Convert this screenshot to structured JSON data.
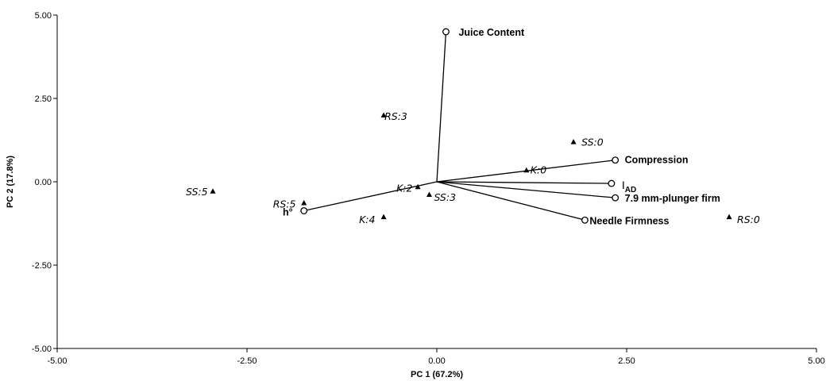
{
  "chart_data": {
    "type": "scatter",
    "subtype": "biplot",
    "xlabel": "PC 1 (67.2%)",
    "ylabel": "PC 2 (17.8%)",
    "xlim": [
      -5.0,
      5.0
    ],
    "ylim": [
      -5.0,
      5.0
    ],
    "x_ticks": [
      "-5.00",
      "-2.50",
      "0.00",
      "2.50",
      "5.00"
    ],
    "y_ticks": [
      "5.00",
      "2.50",
      "0.00",
      "-2.50",
      "-5.00"
    ],
    "grid": false,
    "loadings": [
      {
        "label": "Juice Content",
        "x": 0.12,
        "y": 4.5
      },
      {
        "label": "Compression",
        "x": 2.35,
        "y": 0.65
      },
      {
        "label": "I",
        "subscript": "AD",
        "x": 2.3,
        "y": -0.05
      },
      {
        "label": "7.9 mm-plunger firm",
        "x": 2.35,
        "y": -0.48
      },
      {
        "label": "Needle Firmness",
        "x": 1.95,
        "y": -1.15
      },
      {
        "label": "h°",
        "x": -1.75,
        "y": -0.87
      }
    ],
    "scores": [
      {
        "label": "SS:5",
        "x": -2.95,
        "y": -0.28
      },
      {
        "label": "RS:5",
        "x": -1.75,
        "y": -0.63
      },
      {
        "label": "K:4",
        "x": -0.7,
        "y": -1.05
      },
      {
        "label": "RS:3",
        "x": -0.7,
        "y": 2.0
      },
      {
        "label": "K:2",
        "x": -0.25,
        "y": -0.15
      },
      {
        "label": "SS:3",
        "x": -0.1,
        "y": -0.38
      },
      {
        "label": "K:0",
        "x": 1.18,
        "y": 0.35
      },
      {
        "label": "SS:0",
        "x": 1.8,
        "y": 1.2
      },
      {
        "label": "RS:0",
        "x": 3.85,
        "y": -1.05
      }
    ]
  }
}
